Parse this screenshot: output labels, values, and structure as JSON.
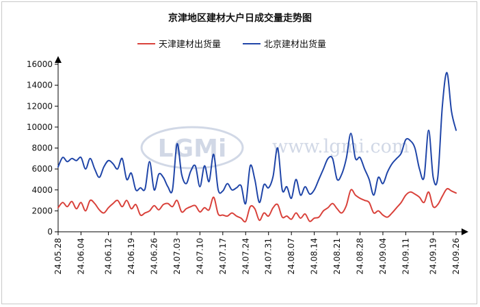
{
  "chart_data": {
    "type": "line",
    "title": "京津地区建材大户日成交量走势图",
    "watermark": {
      "logo": "LGMi",
      "url": "www.lgmi.com"
    },
    "xlabel": "",
    "ylabel": "",
    "ylim": [
      0,
      16000
    ],
    "yticks": [
      0,
      2000,
      4000,
      6000,
      8000,
      10000,
      12000,
      14000,
      16000
    ],
    "xtick_labels": [
      "24.05.28",
      "24.06.04",
      "24.06.12",
      "24.06.19",
      "24.06.26",
      "24.07.03",
      "24.07.10",
      "24.07.17",
      "24.07.24",
      "24.07.31",
      "24.08.07",
      "24.08.14",
      "24.08.21",
      "24.08.28",
      "24.09.04",
      "24.09.11",
      "24.09.19",
      "24.09.26"
    ],
    "xtick_index": [
      0,
      5,
      11,
      16,
      21,
      26,
      31,
      36,
      41,
      46,
      51,
      56,
      61,
      66,
      71,
      76,
      82,
      87
    ],
    "grid": false,
    "legend": "top",
    "colors": {
      "tianjin": "#d9413a",
      "beijing": "#1f45a8",
      "watermark": "#9aa9c8"
    },
    "series": [
      {
        "name": "天津建材出货量",
        "color": "#d9413a",
        "values": [
          2300,
          2800,
          2400,
          2900,
          2200,
          2800,
          2000,
          3000,
          2700,
          2100,
          1800,
          2300,
          2700,
          3000,
          2400,
          3000,
          2200,
          2600,
          1600,
          1800,
          2000,
          2500,
          2100,
          2600,
          2700,
          2400,
          3000,
          1900,
          2200,
          2400,
          2500,
          1900,
          2300,
          2100,
          3300,
          1700,
          1600,
          1500,
          1800,
          1500,
          1300,
          1000,
          2400,
          2200,
          1100,
          1800,
          1500,
          2300,
          2600,
          1400,
          1500,
          1200,
          1800,
          1300,
          1700,
          1000,
          1300,
          1400,
          2000,
          2300,
          2700,
          2200,
          1800,
          2500,
          4000,
          3500,
          3200,
          3000,
          2800,
          1800,
          2000,
          1600,
          1400,
          1800,
          2300,
          2800,
          3500,
          3800,
          3600,
          3300,
          2800,
          3800,
          2400,
          2600,
          3400,
          4100,
          3900,
          3700
        ]
      },
      {
        "name": "北京建材出货量",
        "color": "#1f45a8",
        "values": [
          6200,
          7100,
          6700,
          7000,
          6800,
          7100,
          6000,
          7000,
          6000,
          5200,
          6200,
          6800,
          6500,
          6000,
          7000,
          5000,
          5600,
          4000,
          4200,
          4100,
          6700,
          4000,
          5500,
          5200,
          4300,
          4000,
          8400,
          5500,
          4600,
          5800,
          6300,
          4300,
          6300,
          4800,
          7400,
          4000,
          3900,
          4600,
          4000,
          4200,
          4400,
          2700,
          6300,
          5000,
          2800,
          4500,
          4200,
          5300,
          8000,
          4000,
          4300,
          3200,
          5000,
          3500,
          4300,
          3600,
          4000,
          5000,
          6000,
          7000,
          7000,
          5000,
          5500,
          7000,
          9400,
          7000,
          7100,
          6000,
          5000,
          3500,
          5200,
          4600,
          5700,
          6500,
          7000,
          7500,
          8800,
          8700,
          8000,
          6000,
          5200,
          9700,
          5200,
          5200,
          12000,
          15200,
          11500,
          9700
        ]
      }
    ]
  }
}
